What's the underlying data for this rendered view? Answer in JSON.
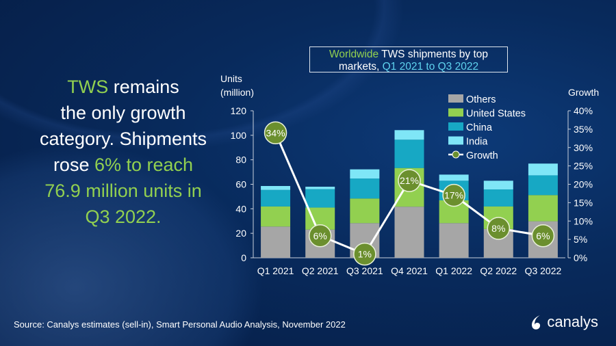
{
  "headline": {
    "line1_green": "TWS",
    "line1_rest": " remains",
    "line2": "the only growth",
    "line3": "category. Shipments",
    "line4_white": "rose ",
    "line4_green": "6% to reach",
    "line5_green": "76.9 million units in",
    "line6_green": "Q3 2022."
  },
  "title_box": {
    "part1": "Worldwide",
    "part2": " TWS shipments by top",
    "part3": "markets, ",
    "part4": "Q1 2021 to Q3 2022"
  },
  "source": "Source: Canalys estimates (sell-in), Smart Personal Audio Analysis, November 2022",
  "logo_text": "canalys",
  "chart_data": {
    "type": "bar",
    "stacked": true,
    "title": "Worldwide TWS shipments by top markets, Q1 2021 to Q3 2022",
    "ylabel": "Units (million)",
    "ylabel_lines": [
      "Units",
      "(million)"
    ],
    "y2label": "Growth",
    "ylim": [
      0,
      120
    ],
    "yticks": [
      0,
      20,
      40,
      60,
      80,
      100,
      120
    ],
    "y2lim": [
      0,
      40
    ],
    "y2ticks": [
      "0%",
      "5%",
      "10%",
      "15%",
      "20%",
      "25%",
      "30%",
      "35%",
      "40%"
    ],
    "grid": false,
    "legend_position": "top-right",
    "categories": [
      "Q1 2021",
      "Q2 2021",
      "Q3 2021",
      "Q4 2021",
      "Q1 2022",
      "Q2 2022",
      "Q3 2022"
    ],
    "series": [
      {
        "name": "Others",
        "color": "#a6a6a6",
        "values": [
          25.5,
          23.0,
          28.3,
          41.7,
          28.3,
          23.5,
          29.8
        ]
      },
      {
        "name": "United States",
        "color": "#92d050",
        "values": [
          16.4,
          18.0,
          20.1,
          31.6,
          18.6,
          18.4,
          21.4
        ]
      },
      {
        "name": "China",
        "color": "#17a8c4",
        "values": [
          13.5,
          15.0,
          16.3,
          23.1,
          16.0,
          13.9,
          16.1
        ]
      },
      {
        "name": "India",
        "color": "#7fe6f7",
        "values": [
          3.2,
          2.0,
          7.5,
          7.8,
          5.0,
          7.1,
          9.6
        ]
      }
    ],
    "growth": {
      "name": "Growth",
      "color": "#6b8f2e",
      "values": [
        34,
        6,
        1,
        21,
        17,
        8,
        6
      ],
      "labels": [
        "34%",
        "6%",
        "1%",
        "21%",
        "17%",
        "8%",
        "6%"
      ]
    }
  }
}
